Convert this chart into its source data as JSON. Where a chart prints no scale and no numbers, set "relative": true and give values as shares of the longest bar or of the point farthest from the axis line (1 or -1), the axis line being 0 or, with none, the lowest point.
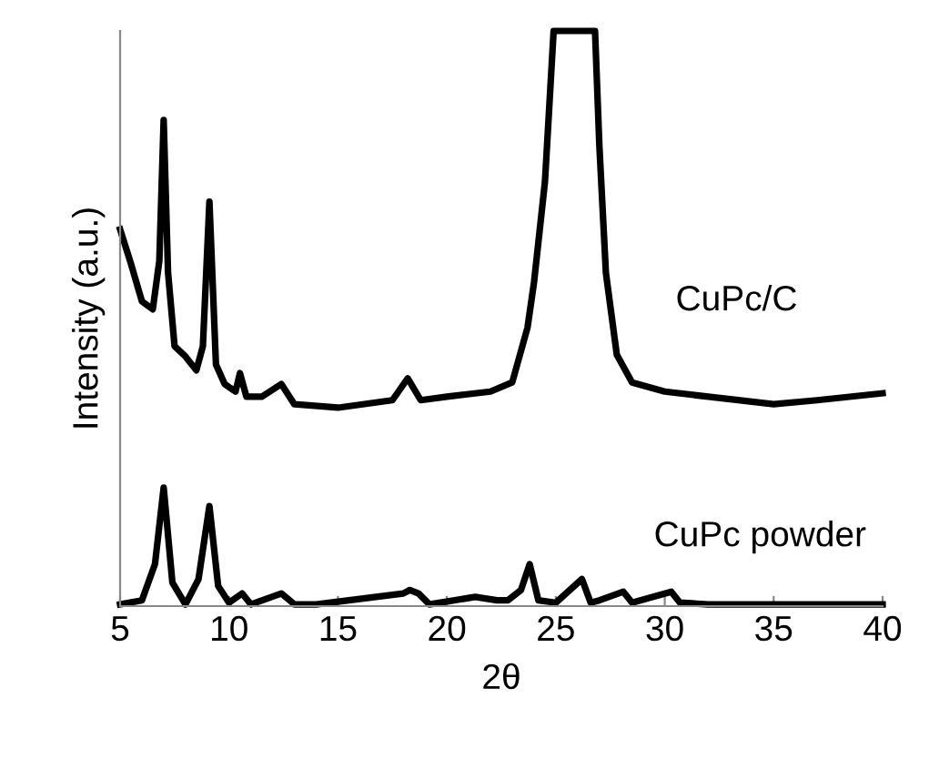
{
  "chart_data": {
    "type": "line",
    "relative": true,
    "xlabel": "2θ",
    "ylabel": "Intensity (a.u.)",
    "xlim": [
      5,
      40
    ],
    "xticks": [
      5,
      10,
      15,
      20,
      25,
      30,
      35,
      40
    ],
    "grid": false,
    "legend": false,
    "marker": "none",
    "line_style": "solid",
    "series": [
      {
        "name": "CuPc/C",
        "color": "#000000",
        "x": [
          5,
          5.5,
          6,
          6.5,
          6.8,
          7.0,
          7.2,
          7.5,
          8,
          8.5,
          8.8,
          9.1,
          9.4,
          9.8,
          10.3,
          10.5,
          10.8,
          11.5,
          12.4,
          13,
          15,
          17.5,
          18.2,
          18.8,
          20,
          22,
          23,
          23.7,
          24,
          24.5,
          24.9,
          26.8,
          27.0,
          27.3,
          27.8,
          28.5,
          30,
          32,
          35,
          37,
          40
        ],
        "values": [
          0.655,
          0.595,
          0.53,
          0.516,
          0.6,
          0.845,
          0.58,
          0.452,
          0.434,
          0.41,
          0.452,
          0.703,
          0.42,
          0.386,
          0.373,
          0.405,
          0.364,
          0.364,
          0.386,
          0.351,
          0.345,
          0.358,
          0.396,
          0.358,
          0.364,
          0.373,
          0.389,
          0.484,
          0.563,
          0.737,
          1,
          1,
          0.8,
          0.579,
          0.437,
          0.389,
          0.373,
          0.364,
          0.351,
          0.358,
          0.37
        ]
      },
      {
        "name": "CuPc powder",
        "color": "#000000",
        "x": [
          5,
          6,
          6.6,
          7.0,
          7.4,
          8,
          8.6,
          9.1,
          9.5,
          10,
          10.6,
          11,
          12.4,
          13,
          14,
          18,
          18.3,
          18.7,
          19.2,
          21.3,
          22.3,
          22.8,
          23.4,
          23.8,
          24.2,
          25,
          26.2,
          26.6,
          27,
          28.1,
          28.5,
          30.3,
          30.7,
          32,
          35,
          40
        ],
        "values": [
          0.003,
          0.01,
          0.073,
          0.206,
          0.041,
          0.003,
          0.047,
          0.174,
          0.035,
          0.006,
          0.022,
          0.003,
          0.022,
          0.003,
          0.003,
          0.022,
          0.028,
          0.022,
          0.003,
          0.016,
          0.01,
          0.01,
          0.028,
          0.073,
          0.01,
          0.006,
          0.047,
          0.006,
          0.01,
          0.025,
          0.006,
          0.025,
          0.006,
          0.003,
          0.003,
          0.003
        ]
      }
    ]
  }
}
